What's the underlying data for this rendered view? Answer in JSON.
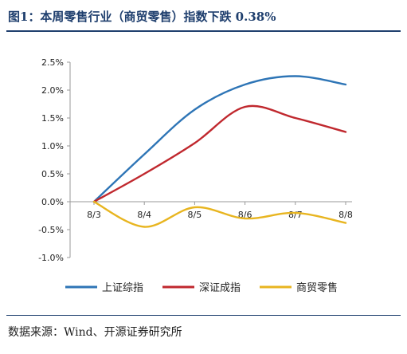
{
  "header": {
    "title": "图1：本周零售行业（商贸零售）指数下跌 0.38%"
  },
  "footer": {
    "source": "数据来源：Wind、开源证券研究所"
  },
  "chart_data": {
    "type": "line",
    "x": [
      "8/3",
      "8/4",
      "8/5",
      "8/6",
      "8/7",
      "8/8"
    ],
    "ylim": [
      -1.0,
      2.5
    ],
    "yticks": [
      "-1.0%",
      "-0.5%",
      "0.0%",
      "0.5%",
      "1.0%",
      "1.5%",
      "2.0%",
      "2.5%"
    ],
    "legend_position": "bottom",
    "grid": false,
    "series": [
      {
        "name": "上证综指",
        "color": "#2e75b6",
        "values": [
          0.0,
          0.85,
          1.65,
          2.1,
          2.25,
          2.1
        ]
      },
      {
        "name": "深证成指",
        "color": "#c0282e",
        "values": [
          0.0,
          0.5,
          1.05,
          1.7,
          1.5,
          1.25
        ]
      },
      {
        "name": "商贸零售",
        "color": "#e8b520",
        "values": [
          0.0,
          -0.45,
          -0.1,
          -0.3,
          -0.2,
          -0.38
        ]
      }
    ]
  }
}
